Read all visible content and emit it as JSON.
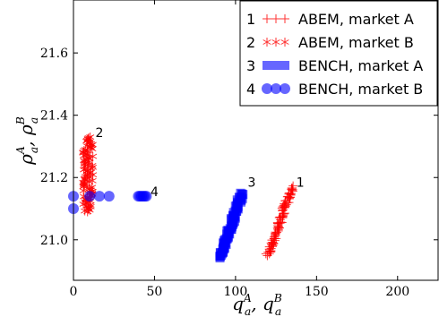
{
  "chart_data": {
    "type": "scatter",
    "xlabel": "q_a^A, q_a^B",
    "ylabel": "ρ_a^A, ρ_a^B",
    "xlim": [
      0,
      225
    ],
    "ylim": [
      20.87,
      21.77
    ],
    "xticks": [
      0,
      50,
      100,
      150,
      200
    ],
    "yticks": [
      21.0,
      21.2,
      21.4,
      21.6
    ],
    "xtick_labels": [
      "0",
      "50",
      "100",
      "150",
      "200"
    ],
    "ytick_labels": [
      "21.0",
      "21.2",
      "21.4",
      "21.6"
    ],
    "legend_position": "top-right",
    "series": [
      {
        "id": "1",
        "name": "ABEM, market A",
        "marker": "plus",
        "color": "#ff0000",
        "shape": "line-cluster",
        "from": [
          120,
          20.95
        ],
        "to": [
          135,
          21.17
        ]
      },
      {
        "id": "2",
        "name": "ABEM, market B",
        "marker": "star",
        "color": "#ff0000",
        "shape": "vertical-cluster",
        "x_center": 9,
        "x_spread": 3,
        "y_range": [
          21.09,
          21.33
        ]
      },
      {
        "id": "3",
        "name": "BENCH, market A",
        "marker": "square",
        "color": "#0000ff",
        "shape": "line-cluster",
        "from": [
          90,
          20.94
        ],
        "to": [
          104,
          21.15
        ]
      },
      {
        "id": "4",
        "name": "BENCH, market B",
        "marker": "circle",
        "color": "#0000ff",
        "shape": "points",
        "points": [
          [
            0,
            21.1
          ],
          [
            0,
            21.14
          ],
          [
            10,
            21.14
          ],
          [
            16,
            21.14
          ],
          [
            22,
            21.14
          ],
          [
            40,
            21.14
          ],
          [
            41,
            21.14
          ],
          [
            42,
            21.14
          ],
          [
            43,
            21.14
          ],
          [
            44,
            21.14
          ],
          [
            45,
            21.14
          ]
        ]
      }
    ],
    "annotations": [
      {
        "text": "1",
        "x": 140,
        "y": 21.17
      },
      {
        "text": "2",
        "x": 16,
        "y": 21.33
      },
      {
        "text": "3",
        "x": 110,
        "y": 21.17
      },
      {
        "text": "4",
        "x": 50,
        "y": 21.14
      }
    ]
  }
}
